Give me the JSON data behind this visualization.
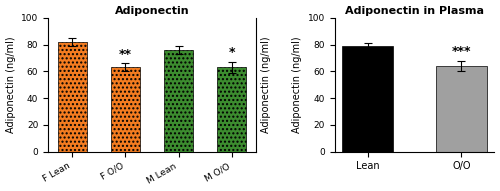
{
  "chart1": {
    "title": "Adiponectin",
    "categories": [
      "F Lean",
      "F O/O",
      "M Lean",
      "M O/O"
    ],
    "values": [
      82,
      63,
      76,
      63
    ],
    "errors": [
      3,
      3,
      3,
      4
    ],
    "bar_colors": [
      "#F47C20",
      "#F47C20",
      "#3C8C2F",
      "#3C8C2F"
    ],
    "ylabel": "Adiponectin (ng/ml)",
    "ylabel_right": "Adiponectin (ng/ml)",
    "ylim": [
      0,
      100
    ],
    "yticks": [
      0,
      20,
      40,
      60,
      80,
      100
    ],
    "significance": [
      "",
      "**",
      "",
      "*"
    ]
  },
  "chart2": {
    "title": "Adiponectin in Plasma",
    "categories": [
      "Lean",
      "O/O"
    ],
    "values": [
      79,
      64
    ],
    "errors": [
      2,
      4
    ],
    "bar_colors": [
      "#000000",
      "#A0A0A0"
    ],
    "ylabel": "Adiponectin (ng/ml)",
    "ylim": [
      0,
      100
    ],
    "yticks": [
      0,
      20,
      40,
      60,
      80,
      100
    ],
    "significance": [
      "",
      "***"
    ]
  },
  "background_color": "#ffffff",
  "label_fontsize": 7,
  "title_fontsize": 8,
  "tick_fontsize": 6.5,
  "sig_fontsize": 9,
  "bar_width": 0.55,
  "edge_color": "#000000"
}
